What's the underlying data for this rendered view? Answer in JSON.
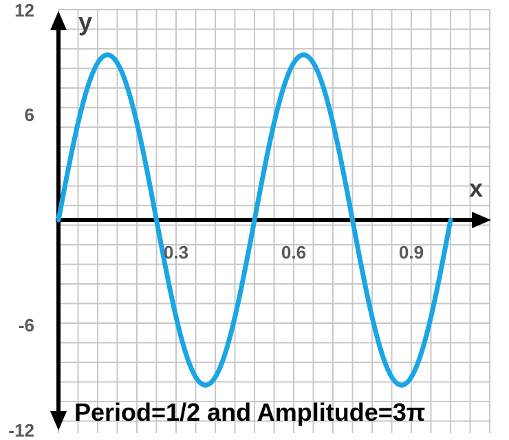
{
  "chart_data": {
    "type": "line",
    "title": "",
    "xlabel": "x",
    "ylabel": "y",
    "xlim": [
      0,
      1.0
    ],
    "ylim": [
      -12,
      12
    ],
    "x_ticks": [
      0.3,
      0.6,
      0.9
    ],
    "x_tick_labels": [
      "0.3",
      "0.6",
      "0.9"
    ],
    "y_ticks": [
      12,
      6,
      -6,
      -12
    ],
    "y_tick_labels": [
      "12",
      "6",
      "-6",
      "-12"
    ],
    "grid": true,
    "legend": false,
    "annotation": "Period=1/2 and Amplitude=3π",
    "series": [
      {
        "function": "3*pi*sin(4*pi*x)",
        "amplitude": 9.42,
        "period": 0.5,
        "x_range": [
          0,
          1.0
        ],
        "color": "#1aa6e4",
        "x": [
          0,
          0.0625,
          0.125,
          0.1875,
          0.25,
          0.3125,
          0.375,
          0.4375,
          0.5,
          0.5625,
          0.625,
          0.6875,
          0.75,
          0.8125,
          0.875,
          0.9375,
          1.0
        ],
        "y": [
          0,
          6.66,
          9.42,
          6.66,
          0,
          -6.66,
          -9.42,
          -6.66,
          0,
          6.66,
          9.42,
          6.66,
          0,
          -6.66,
          -9.42,
          -6.66,
          0
        ]
      }
    ]
  },
  "colors": {
    "grid": "#c8c8c8",
    "axis": "#000000",
    "curve": "#1aa6e4"
  }
}
